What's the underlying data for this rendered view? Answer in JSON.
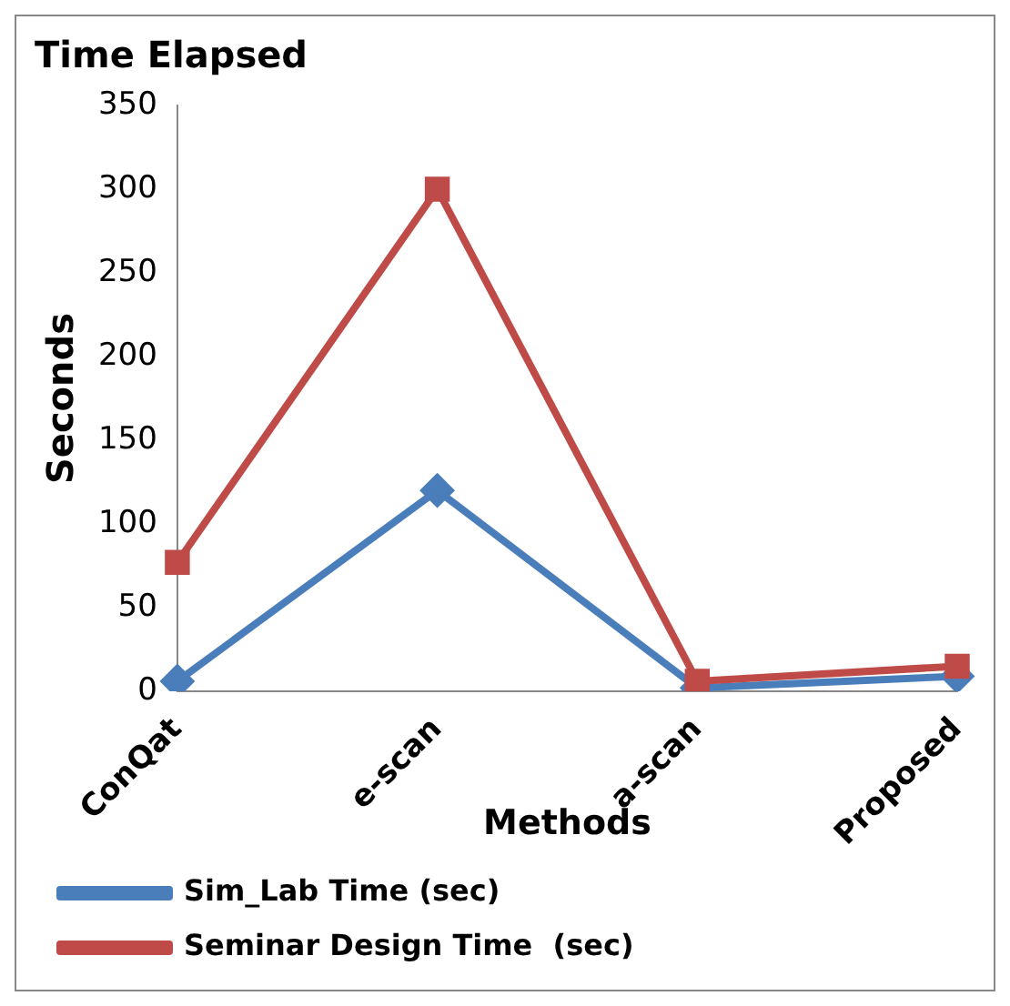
{
  "chart_data": {
    "type": "line",
    "title": "Time Elapsed",
    "xlabel": "Methods",
    "ylabel": "Seconds",
    "categories": [
      "ConQat",
      "e-scan",
      "a-scan",
      "Proposed"
    ],
    "series": [
      {
        "name": "Sim_Lab Time (sec)",
        "color": "#4a7ebb",
        "values": [
          6,
          120,
          2,
          9
        ],
        "marker": "diamond"
      },
      {
        "name": "Seminar Design Time  (sec)",
        "color": "#be4b48",
        "values": [
          77,
          300,
          6,
          15
        ],
        "marker": "square"
      }
    ],
    "ylim": [
      0,
      350
    ],
    "yticks": [
      0,
      50,
      100,
      150,
      200,
      250,
      300,
      350
    ],
    "grid": false,
    "legend": "bottom",
    "line_style": "solid"
  }
}
